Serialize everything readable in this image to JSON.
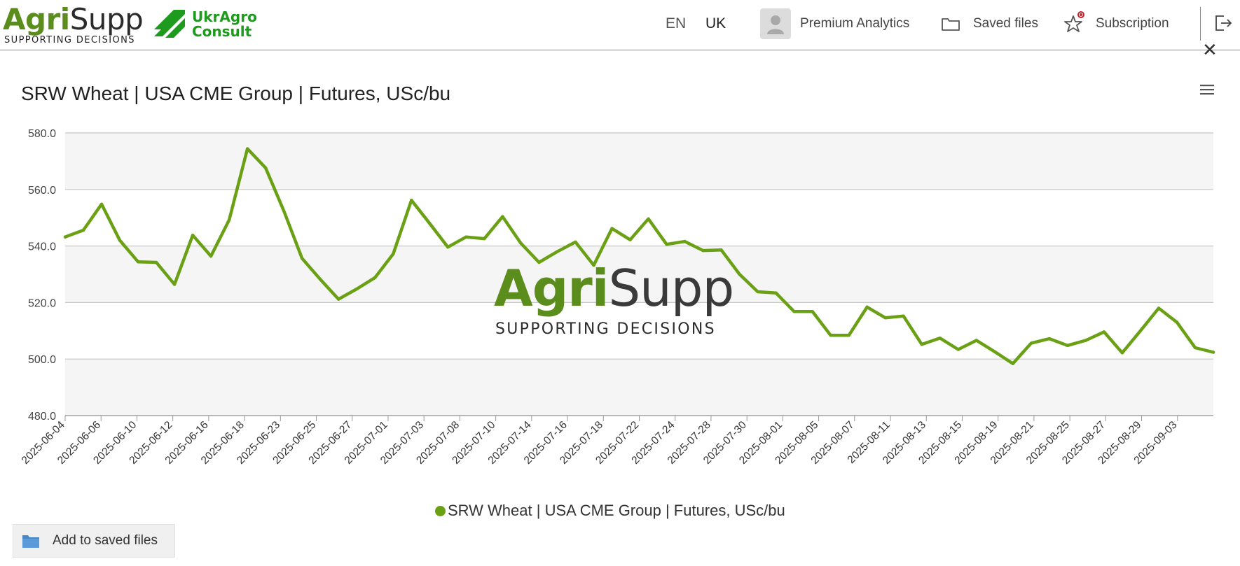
{
  "header": {
    "logo_word_agri": "Agri",
    "logo_word_supp": "Supp",
    "logo_tagline": "SUPPORTING DECISIONS",
    "partner_line1": "UkrAgro",
    "partner_line2": "Consult",
    "languages": [
      "EN",
      "UK"
    ],
    "nav": {
      "premium": "Premium Analytics",
      "saved": "Saved files",
      "subscription": "Subscription"
    },
    "icons": [
      "avatar-icon",
      "folder-icon",
      "star-icon",
      "logout-icon",
      "close-icon",
      "hamburger-menu-icon"
    ]
  },
  "watermark": {
    "agri": "Agri",
    "supp": "Supp",
    "tagline": "SUPPORTING DECISIONS"
  },
  "legend_label": "SRW Wheat | USA CME Group | Futures, USc/bu",
  "save_button_label": "Add to saved files",
  "colors": {
    "series": "#6aa014",
    "brand_green": "#5a8d1c",
    "band": "#f5f5f5",
    "grid": "#c8c8c8"
  },
  "chart_data": {
    "type": "line",
    "title": "SRW Wheat | USA CME Group | Futures, USc/bu",
    "xlabel": "",
    "ylabel": "",
    "ylim": [
      480,
      580
    ],
    "yticks": [
      "480.0",
      "500.0",
      "520.0",
      "540.0",
      "560.0",
      "580.0"
    ],
    "grid": true,
    "alternating_bands": true,
    "legend_position": "bottom-center",
    "x_tick_labels": [
      "2025-06-04",
      "2025-06-06",
      "2025-06-10",
      "2025-06-12",
      "2025-06-16",
      "2025-06-18",
      "2025-06-23",
      "2025-06-25",
      "2025-06-27",
      "2025-07-01",
      "2025-07-03",
      "2025-07-08",
      "2025-07-10",
      "2025-07-14",
      "2025-07-16",
      "2025-07-18",
      "2025-07-22",
      "2025-07-24",
      "2025-07-28",
      "2025-07-30",
      "2025-08-01",
      "2025-08-05",
      "2025-08-07",
      "2025-08-11",
      "2025-08-13",
      "2025-08-15",
      "2025-08-19",
      "2025-08-21",
      "2025-08-25",
      "2025-08-27",
      "2025-08-29",
      "2025-09-03"
    ],
    "x": [
      "2025-06-04",
      "2025-06-05",
      "2025-06-06",
      "2025-06-09",
      "2025-06-10",
      "2025-06-11",
      "2025-06-12",
      "2025-06-13",
      "2025-06-16",
      "2025-06-17",
      "2025-06-18",
      "2025-06-20",
      "2025-06-23",
      "2025-06-24",
      "2025-06-25",
      "2025-06-26",
      "2025-06-27",
      "2025-06-30",
      "2025-07-01",
      "2025-07-02",
      "2025-07-03",
      "2025-07-07",
      "2025-07-08",
      "2025-07-09",
      "2025-07-10",
      "2025-07-11",
      "2025-07-14",
      "2025-07-15",
      "2025-07-16",
      "2025-07-17",
      "2025-07-18",
      "2025-07-21",
      "2025-07-22",
      "2025-07-23",
      "2025-07-24",
      "2025-07-25",
      "2025-07-28",
      "2025-07-29",
      "2025-07-30",
      "2025-07-31",
      "2025-08-01",
      "2025-08-04",
      "2025-08-05",
      "2025-08-06",
      "2025-08-07",
      "2025-08-08",
      "2025-08-11",
      "2025-08-12",
      "2025-08-13",
      "2025-08-14",
      "2025-08-15",
      "2025-08-18",
      "2025-08-19",
      "2025-08-20",
      "2025-08-21",
      "2025-08-22",
      "2025-08-25",
      "2025-08-26",
      "2025-08-27",
      "2025-08-28",
      "2025-08-29",
      "2025-09-02",
      "2025-09-03",
      "2025-09-04"
    ],
    "series": [
      {
        "name": "SRW Wheat | USA CME Group | Futures, USc/bu",
        "values": [
          543.2,
          545.6,
          554.8,
          542.0,
          534.4,
          534.2,
          526.4,
          543.8,
          536.4,
          549.2,
          574.4,
          567.6,
          552.4,
          535.6,
          528.2,
          521.2,
          524.8,
          528.8,
          537.2,
          556.2,
          548.0,
          539.6,
          543.2,
          542.6,
          550.4,
          541.0,
          534.2,
          538.0,
          541.4,
          533.2,
          546.2,
          542.2,
          549.6,
          540.6,
          541.6,
          538.4,
          538.6,
          530.0,
          523.8,
          523.4,
          516.8,
          516.8,
          508.4,
          508.4,
          518.4,
          514.6,
          515.2,
          505.2,
          507.4,
          503.4,
          506.6,
          502.6,
          498.4,
          505.6,
          507.2,
          504.8,
          506.6,
          509.6,
          502.2,
          510.0,
          518.0,
          513.0,
          504.0,
          502.4
        ]
      }
    ]
  }
}
